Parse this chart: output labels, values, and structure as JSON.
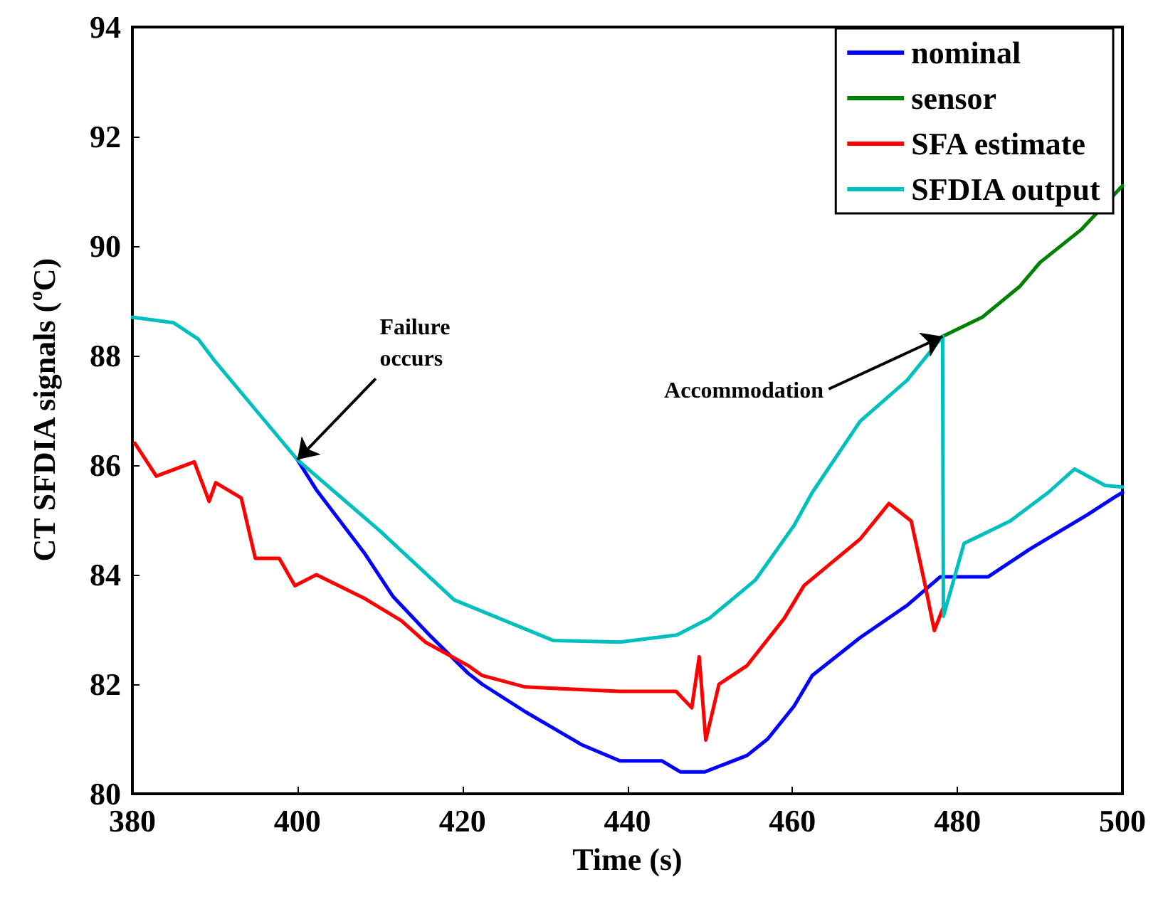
{
  "chart_data": {
    "type": "line",
    "xlabel": "Time (s)",
    "ylabel": "CT SFDIA signals ($^{o}$C)",
    "xlim": [
      380,
      500
    ],
    "xticks": [
      380,
      400,
      420,
      440,
      460,
      480,
      500
    ],
    "ylim": [
      80,
      94
    ],
    "yticks": [
      80,
      82,
      84,
      86,
      88,
      90,
      92,
      94
    ],
    "grid": false,
    "legend": "top right",
    "marker": "none",
    "line_style": "solid",
    "series": [
      {
        "name": "nominal",
        "color": "#0000ff",
        "x": [
          400,
          402.3,
          408.1,
          411.6,
          416,
          420.7,
          422.4,
          427.6,
          434.4,
          439.1,
          444.2,
          446.4,
          449.4,
          454.5,
          457,
          460.2,
          462.4,
          468.2,
          473.9,
          477.9,
          483.7,
          488.8,
          495.7,
          499.1,
          500
        ],
        "values": [
          86.1,
          85.55,
          84.4,
          83.6,
          82.9,
          82.2,
          82.0,
          81.5,
          80.9,
          80.6,
          80.6,
          80.4,
          80.4,
          80.7,
          81.0,
          81.6,
          82.16,
          82.85,
          83.44,
          83.96,
          83.96,
          84.47,
          85.09,
          85.42,
          85.5
        ]
      },
      {
        "name": "sensor",
        "color": "#008000",
        "x": [
          478.2,
          483,
          487.6,
          490,
          495,
          500
        ],
        "values": [
          88.35,
          88.7,
          89.27,
          89.7,
          90.3,
          91.1
        ]
      },
      {
        "name": "SFA estimate",
        "color": "#ff0000",
        "x": [
          380.3,
          382.9,
          387.5,
          389.3,
          390.1,
          393.2,
          394.9,
          397.8,
          399.7,
          402.3,
          408.1,
          412.6,
          415.5,
          420.7,
          422.4,
          427.6,
          439,
          445.9,
          447.8,
          448.7,
          449.5,
          451.1,
          454.5,
          459,
          461.4,
          468.2,
          471.7,
          474.4,
          476.1,
          477.2,
          478.2
        ],
        "values": [
          86.4,
          85.8,
          86.06,
          85.34,
          85.68,
          85.4,
          84.3,
          84.3,
          83.8,
          84.0,
          83.57,
          83.16,
          82.77,
          82.34,
          82.16,
          81.95,
          81.87,
          81.87,
          81.57,
          82.5,
          80.98,
          82.0,
          82.34,
          83.2,
          83.8,
          84.65,
          85.3,
          84.98,
          83.8,
          82.98,
          83.37
        ]
      },
      {
        "name": "SFDIA output",
        "color": "#00bfbf",
        "x": [
          380,
          385,
          388,
          390,
          395,
          400,
          410,
          419,
          431,
          439.1,
          446,
          449.9,
          455.5,
          460.2,
          462.4,
          468.2,
          473.9,
          478.2,
          478.3,
          480.8,
          486.4,
          491,
          494.2,
          497.9,
          500
        ],
        "values": [
          88.7,
          88.6,
          88.3,
          87.9,
          87.0,
          86.1,
          84.8,
          83.54,
          82.8,
          82.77,
          82.9,
          83.2,
          83.9,
          84.9,
          85.5,
          86.8,
          87.55,
          88.35,
          83.24,
          84.57,
          84.98,
          85.5,
          85.93,
          85.63,
          85.6
        ]
      }
    ],
    "annotations": [
      {
        "text": "Failure occurs",
        "x": 400,
        "y": 86.1
      },
      {
        "text": "Accommodation",
        "x": 478.2,
        "y": 88.35
      }
    ]
  }
}
